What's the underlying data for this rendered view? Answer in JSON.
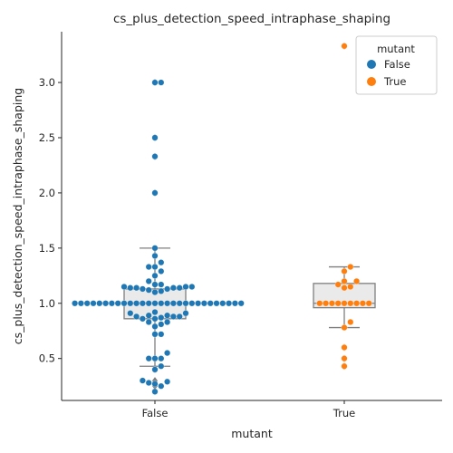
{
  "chart_data": {
    "type": "box+swarm",
    "title": "cs_plus_detection_speed_intraphase_shaping",
    "xlabel": "mutant",
    "ylabel": "cs_plus_detection_speed_intraphase_shaping",
    "categories": [
      "False",
      "True"
    ],
    "ylim": [
      0.12,
      3.46
    ],
    "yticks": [
      0.5,
      1.0,
      1.5,
      2.0,
      2.5,
      3.0
    ],
    "ytick_labels": [
      "0.5",
      "1.0",
      "1.5",
      "2.0",
      "2.5",
      "3.0"
    ],
    "legend": {
      "title": "mutant",
      "placement": "top-right",
      "entries": [
        "False",
        "True"
      ]
    },
    "colors": {
      "False": "#1f77b4",
      "True": "#ff7f0e",
      "box_fill": "#eaeaea",
      "box_edge": "#7f7f7f"
    },
    "boxes": [
      {
        "category": "False",
        "whisker_low": 0.43,
        "q1": 0.86,
        "median": 1.0,
        "q3": 1.13,
        "whisker_high": 1.5,
        "outliers": [
          0.2,
          0.25,
          0.27,
          0.3,
          0.4,
          2.0,
          2.33,
          2.5,
          3.0
        ]
      },
      {
        "category": "True",
        "whisker_low": 0.78,
        "q1": 0.96,
        "median": 1.0,
        "q3": 1.18,
        "whisker_high": 1.33,
        "outliers": [
          0.43,
          0.5,
          0.6,
          3.33
        ]
      }
    ],
    "series": [
      {
        "category": "False",
        "values": [
          0.2,
          0.25,
          0.27,
          0.3,
          0.29,
          0.28,
          0.4,
          0.43,
          0.5,
          0.5,
          0.5,
          0.55,
          0.72,
          0.72,
          0.79,
          0.81,
          0.83,
          0.83,
          0.86,
          0.86,
          0.87,
          0.88,
          0.88,
          0.88,
          0.89,
          0.89,
          0.91,
          0.91,
          0.92,
          1.0,
          1.0,
          1.0,
          1.0,
          1.0,
          1.0,
          1.0,
          1.0,
          1.0,
          1.0,
          1.0,
          1.0,
          1.0,
          1.0,
          1.0,
          1.0,
          1.0,
          1.0,
          1.0,
          1.0,
          1.0,
          1.0,
          1.0,
          1.0,
          1.0,
          1.0,
          1.0,
          1.0,
          1.1,
          1.11,
          1.12,
          1.13,
          1.13,
          1.14,
          1.14,
          1.14,
          1.14,
          1.15,
          1.15,
          1.15,
          1.17,
          1.17,
          1.2,
          1.25,
          1.29,
          1.33,
          1.33,
          1.37,
          1.43,
          1.5,
          2.0,
          2.33,
          2.5,
          3.0,
          3.0
        ]
      },
      {
        "category": "True",
        "values": [
          0.43,
          0.5,
          0.6,
          0.78,
          0.83,
          1.0,
          1.0,
          1.0,
          1.0,
          1.0,
          1.0,
          1.0,
          1.0,
          1.0,
          1.14,
          1.15,
          1.17,
          1.2,
          1.2,
          1.29,
          1.33,
          3.33
        ]
      }
    ]
  }
}
